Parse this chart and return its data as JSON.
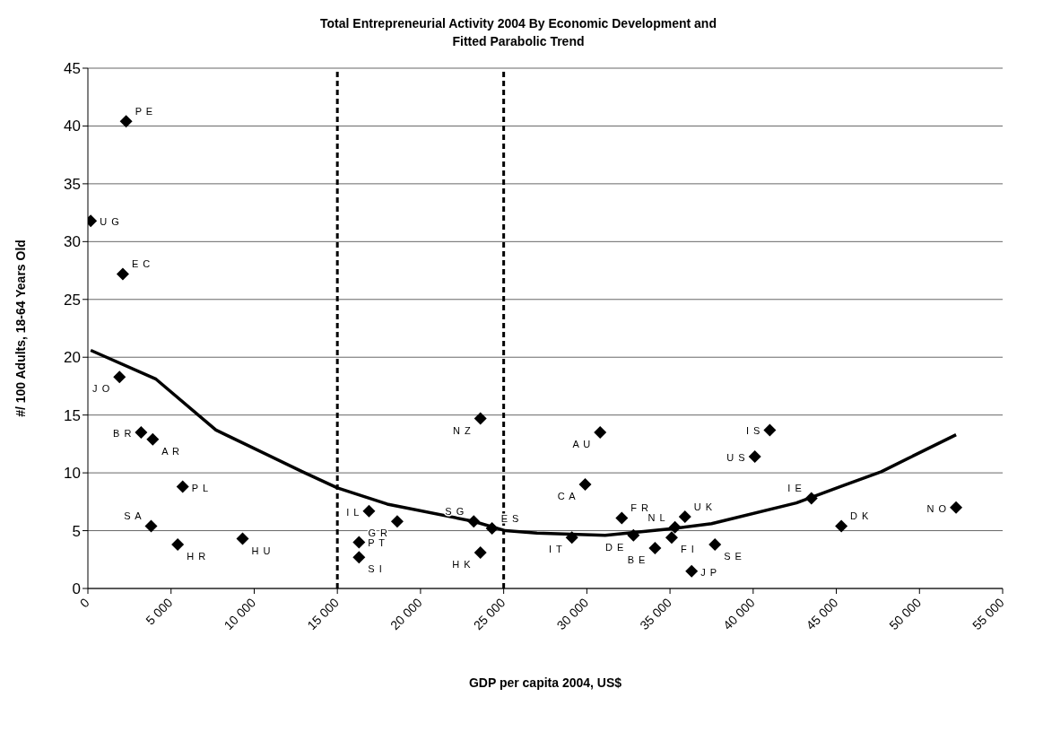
{
  "chart_data": {
    "type": "scatter",
    "title": "Total Entrepreneurial Activity 2004 By Economic Development and Fitted Parabolic Trend",
    "xlabel": "GDP per capita 2004, US$",
    "ylabel": "#/ 100 Adults, 18-64 Years Old",
    "xlim": [
      0,
      55000
    ],
    "xticks": [
      0,
      {
        "value": 5000,
        "label": "5 000"
      },
      {
        "value": 10000,
        "label": "10 000"
      },
      {
        "value": 15000,
        "label": "15 000"
      },
      {
        "value": 20000,
        "label": "20 000"
      },
      {
        "value": 25000,
        "label": "25 000"
      },
      {
        "value": 30000,
        "label": "30 000"
      },
      {
        "value": 35000,
        "label": "35 000"
      },
      {
        "value": 40000,
        "label": "40 000"
      },
      {
        "value": 45000,
        "label": "45 000"
      },
      {
        "value": 50000,
        "label": "50 000"
      },
      {
        "value": 55000,
        "label": "55 000"
      }
    ],
    "ylim": [
      0,
      45
    ],
    "yticks": [
      0,
      5,
      10,
      15,
      20,
      25,
      30,
      35,
      40,
      45
    ],
    "grid": "y",
    "legend": false,
    "marker": "diamond",
    "series": [
      {
        "type": "scatter",
        "color": "#000000",
        "x": [
          2300,
          170,
          2100,
          1900,
          3200,
          3900,
          5700,
          3800,
          5400,
          9300,
          16900,
          18600,
          16300,
          16300,
          23600,
          23200,
          24300,
          23600,
          30800,
          29900,
          29100,
          32100,
          32800,
          34100,
          35300,
          35100,
          35900,
          37700,
          36300,
          40100,
          41000,
          43500,
          45300,
          52200
        ],
        "values": [
          40.4,
          31.8,
          27.2,
          18.3,
          13.5,
          12.9,
          8.8,
          5.4,
          3.8,
          4.3,
          6.7,
          5.8,
          4.0,
          2.7,
          14.7,
          5.8,
          5.2,
          3.1,
          13.5,
          9.0,
          4.4,
          6.1,
          4.6,
          3.5,
          5.3,
          4.4,
          6.2,
          3.8,
          1.5,
          11.4,
          13.7,
          7.8,
          5.4,
          7.0
        ]
      },
      {
        "type": "line",
        "color": "#000000",
        "marker": "none",
        "line_style": "solid",
        "x": [
          170,
          4100,
          7700,
          12900,
          15000,
          18000,
          23200,
          25100,
          27000,
          31100,
          35300,
          37500,
          42600,
          45400,
          47700,
          52200
        ],
        "values": [
          20.6,
          18.1,
          13.7,
          10.1,
          8.7,
          7.3,
          5.8,
          5.0,
          4.8,
          4.6,
          5.2,
          5.6,
          7.4,
          8.9,
          10.1,
          13.3
        ]
      }
    ],
    "ref_lines": [
      {
        "axis": "x",
        "value": 15000,
        "line_style": "dashed",
        "color": "#000000"
      },
      {
        "axis": "x",
        "value": 25000,
        "line_style": "dashed",
        "color": "#000000"
      }
    ],
    "annotations": [
      {
        "text": "P E",
        "x": 2300,
        "y": 40.4
      },
      {
        "text": "U G",
        "x": 170,
        "y": 31.8
      },
      {
        "text": "E C",
        "x": 2100,
        "y": 27.2
      },
      {
        "text": "J O",
        "x": 1900,
        "y": 18.3
      },
      {
        "text": "B R",
        "x": 3200,
        "y": 13.5
      },
      {
        "text": "A R",
        "x": 3900,
        "y": 12.9
      },
      {
        "text": "P L",
        "x": 5700,
        "y": 8.8
      },
      {
        "text": "S A",
        "x": 3800,
        "y": 5.4
      },
      {
        "text": "H R",
        "x": 5400,
        "y": 3.8
      },
      {
        "text": "H U",
        "x": 9300,
        "y": 4.3
      },
      {
        "text": "I L",
        "x": 16900,
        "y": 6.7
      },
      {
        "text": "G R",
        "x": 18600,
        "y": 5.8
      },
      {
        "text": "P T",
        "x": 16300,
        "y": 4.0
      },
      {
        "text": "S I",
        "x": 16300,
        "y": 2.7
      },
      {
        "text": "N Z",
        "x": 23600,
        "y": 14.7
      },
      {
        "text": "S G",
        "x": 23200,
        "y": 5.8
      },
      {
        "text": "E S",
        "x": 24300,
        "y": 5.2
      },
      {
        "text": "H K",
        "x": 23600,
        "y": 3.1
      },
      {
        "text": "A U",
        "x": 30800,
        "y": 13.5
      },
      {
        "text": "C A",
        "x": 29900,
        "y": 9.0
      },
      {
        "text": "I T",
        "x": 29100,
        "y": 4.4
      },
      {
        "text": "F R",
        "x": 32100,
        "y": 6.1
      },
      {
        "text": "D E",
        "x": 32800,
        "y": 4.6
      },
      {
        "text": "B E",
        "x": 34100,
        "y": 3.5
      },
      {
        "text": "N L",
        "x": 35300,
        "y": 5.3
      },
      {
        "text": "F I",
        "x": 35100,
        "y": 4.4
      },
      {
        "text": "U K",
        "x": 35900,
        "y": 6.2
      },
      {
        "text": "S E",
        "x": 37700,
        "y": 3.8
      },
      {
        "text": "J P",
        "x": 36300,
        "y": 1.5
      },
      {
        "text": "U S",
        "x": 40100,
        "y": 11.4
      },
      {
        "text": "I S",
        "x": 41000,
        "y": 13.7
      },
      {
        "text": "I E",
        "x": 43500,
        "y": 7.8
      },
      {
        "text": "D K",
        "x": 45300,
        "y": 5.4
      },
      {
        "text": "N O",
        "x": 52200,
        "y": 7.0
      }
    ]
  }
}
